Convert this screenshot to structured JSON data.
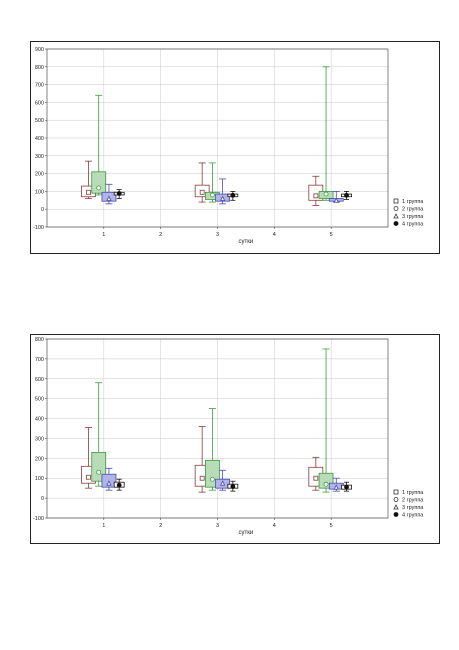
{
  "chart_data": [
    {
      "type": "box",
      "xlabel": "сутки",
      "ylim": [
        -100,
        900
      ],
      "yticks": [
        -100,
        0,
        100,
        200,
        300,
        400,
        500,
        600,
        700,
        800,
        900
      ],
      "xlim": [
        0,
        6
      ],
      "xticks": [
        1,
        2,
        3,
        4,
        5
      ],
      "grid": true,
      "legend_position": "bottom-right",
      "series": [
        {
          "name": "1 группа",
          "marker": "square",
          "box_fill": "#ffffff",
          "color": "#8a3a3a",
          "boxes": [
            {
              "x": 1,
              "min": 60,
              "q1": 70,
              "median": 95,
              "q3": 130,
              "max": 270
            },
            {
              "x": 3,
              "min": 40,
              "q1": 70,
              "median": 95,
              "q3": 135,
              "max": 260
            },
            {
              "x": 5,
              "min": 20,
              "q1": 50,
              "median": 75,
              "q3": 135,
              "max": 185
            }
          ]
        },
        {
          "name": "2 группа",
          "marker": "circle",
          "box_fill": "#b8dcb8",
          "color": "#3a9a3a",
          "boxes": [
            {
              "x": 1,
              "min": 80,
              "q1": 90,
              "median": 120,
              "q3": 210,
              "max": 640
            },
            {
              "x": 3,
              "min": 40,
              "q1": 55,
              "median": 80,
              "q3": 95,
              "max": 260
            },
            {
              "x": 5,
              "min": 50,
              "q1": 60,
              "median": 85,
              "q3": 100,
              "max": 800
            }
          ]
        },
        {
          "name": "3 группа",
          "marker": "triangle",
          "box_fill": "#b0b4e8",
          "color": "#4a4ab0",
          "boxes": [
            {
              "x": 1,
              "min": 30,
              "q1": 45,
              "median": 60,
              "q3": 95,
              "max": 140
            },
            {
              "x": 3,
              "min": 30,
              "q1": 45,
              "median": 60,
              "q3": 85,
              "max": 170
            },
            {
              "x": 5,
              "min": 40,
              "q1": 45,
              "median": 50,
              "q3": 60,
              "max": 100
            }
          ]
        },
        {
          "name": "4 группа",
          "marker": "filled-circle",
          "box_fill": "#ffffff",
          "color": "#111111",
          "boxes": [
            {
              "x": 1,
              "min": 60,
              "q1": 80,
              "median": 88,
              "q3": 95,
              "max": 110
            },
            {
              "x": 3,
              "min": 50,
              "q1": 70,
              "median": 78,
              "q3": 85,
              "max": 100
            },
            {
              "x": 5,
              "min": 55,
              "q1": 70,
              "median": 78,
              "q3": 85,
              "max": 100
            }
          ]
        }
      ]
    },
    {
      "type": "box",
      "xlabel": "сутки",
      "ylim": [
        -100,
        800
      ],
      "yticks": [
        -100,
        0,
        100,
        200,
        300,
        400,
        500,
        600,
        700,
        800
      ],
      "xlim": [
        0,
        6
      ],
      "xticks": [
        1,
        2,
        3,
        4,
        5
      ],
      "grid": true,
      "legend_position": "bottom-right",
      "series": [
        {
          "name": "1 группа",
          "marker": "square",
          "box_fill": "#ffffff",
          "color": "#8a3a3a",
          "boxes": [
            {
              "x": 1,
              "min": 50,
              "q1": 75,
              "median": 105,
              "q3": 160,
              "max": 355
            },
            {
              "x": 3,
              "min": 30,
              "q1": 60,
              "median": 100,
              "q3": 165,
              "max": 360
            },
            {
              "x": 5,
              "min": 40,
              "q1": 60,
              "median": 100,
              "q3": 155,
              "max": 205
            }
          ]
        },
        {
          "name": "2 группа",
          "marker": "circle",
          "box_fill": "#b8dcb8",
          "color": "#3a9a3a",
          "boxes": [
            {
              "x": 1,
              "min": 60,
              "q1": 85,
              "median": 130,
              "q3": 230,
              "max": 580
            },
            {
              "x": 3,
              "min": 40,
              "q1": 55,
              "median": 95,
              "q3": 190,
              "max": 450
            },
            {
              "x": 5,
              "min": 30,
              "q1": 50,
              "median": 70,
              "q3": 125,
              "max": 750
            }
          ]
        },
        {
          "name": "3 группа",
          "marker": "triangle",
          "box_fill": "#b0b4e8",
          "color": "#4a4ab0",
          "boxes": [
            {
              "x": 1,
              "min": 40,
              "q1": 55,
              "median": 75,
              "q3": 120,
              "max": 150
            },
            {
              "x": 3,
              "min": 40,
              "q1": 50,
              "median": 75,
              "q3": 95,
              "max": 140
            },
            {
              "x": 5,
              "min": 35,
              "q1": 45,
              "median": 55,
              "q3": 75,
              "max": 100
            }
          ]
        },
        {
          "name": "4 группа",
          "marker": "filled-circle",
          "box_fill": "#ffffff",
          "color": "#111111",
          "boxes": [
            {
              "x": 1,
              "min": 40,
              "q1": 55,
              "median": 65,
              "q3": 80,
              "max": 95
            },
            {
              "x": 3,
              "min": 35,
              "q1": 50,
              "median": 58,
              "q3": 70,
              "max": 85
            },
            {
              "x": 5,
              "min": 35,
              "q1": 45,
              "median": 55,
              "q3": 65,
              "max": 80
            }
          ]
        }
      ]
    }
  ]
}
